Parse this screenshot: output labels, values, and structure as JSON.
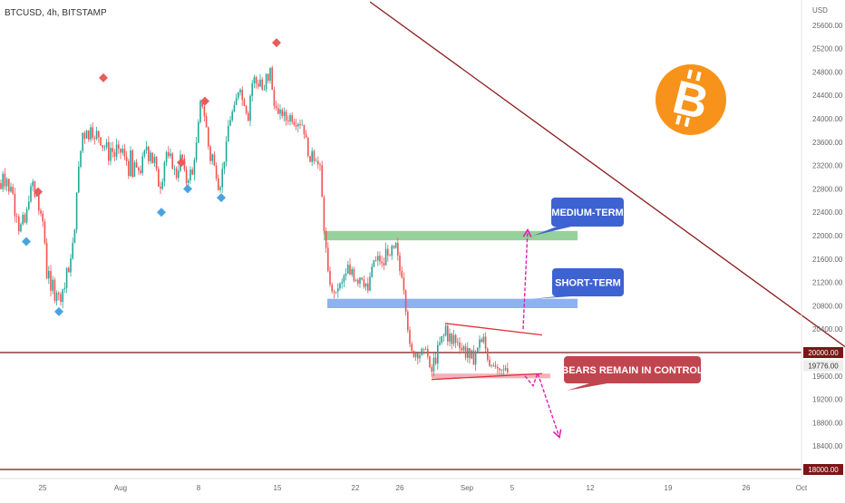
{
  "header": {
    "symbol": "BTCUSD, 4h, BITSTAMP"
  },
  "colors": {
    "up": "#26a69a",
    "down": "#ef5350",
    "level_line": "#7b1616",
    "trendline": "#8b1a1a",
    "medium_zone": "#84c98a",
    "short_zone": "#7aa3f0",
    "support_zone": "#f2a3ad",
    "callout_blue": "#3d62d1",
    "callout_red": "#c0454f",
    "arrow": "#e020b0",
    "triangle": "#e0303a",
    "diamond_red": "#e85c5c",
    "diamond_blue": "#4aa3df",
    "btc_orange": "#f7931a"
  },
  "chart_data": {
    "type": "candlestick",
    "yaxis_unit": "USD",
    "ylim": [
      17900,
      25900
    ],
    "y_ticks": [
      "25600.00",
      "25200.00",
      "24800.00",
      "24400.00",
      "24000.00",
      "23600.00",
      "23200.00",
      "22800.00",
      "22400.00",
      "22000.00",
      "21600.00",
      "21200.00",
      "20800.00",
      "20400.00",
      "19600.00",
      "19200.00",
      "18800.00",
      "18400.00"
    ],
    "x_ticks": [
      "25",
      "Aug",
      "8",
      "15",
      "22",
      "26",
      "Sep",
      "5",
      "12",
      "19",
      "26",
      "Oct"
    ],
    "price_labels": [
      {
        "text": "20000.00",
        "value": 20000,
        "style": "dark"
      },
      {
        "text": "19776.00",
        "value": 19776,
        "style": "light"
      },
      {
        "text": "18000.00",
        "value": 18000,
        "style": "dark"
      }
    ],
    "horizontal_levels": [
      20000,
      18000
    ],
    "zones": [
      {
        "name": "medium",
        "low": 21920,
        "high": 22080
      },
      {
        "name": "short",
        "low": 20760,
        "high": 20920
      },
      {
        "name": "support",
        "low": 19560,
        "high": 19640
      }
    ],
    "price_path": [
      [
        0,
        22900
      ],
      [
        2,
        22700
      ],
      [
        4,
        23350
      ],
      [
        6,
        22700
      ],
      [
        8,
        23050
      ],
      [
        10,
        22700
      ],
      [
        13,
        22950
      ],
      [
        16,
        22350
      ],
      [
        18,
        22550
      ],
      [
        20,
        21950
      ],
      [
        22,
        22350
      ],
      [
        24,
        22000
      ],
      [
        26,
        22500
      ],
      [
        28,
        22100
      ],
      [
        30,
        22500
      ],
      [
        34,
        22800
      ],
      [
        36,
        22950
      ],
      [
        38,
        22600
      ],
      [
        40,
        22850
      ],
      [
        42,
        22400
      ],
      [
        44,
        22500
      ],
      [
        46,
        22150
      ],
      [
        48,
        22300
      ],
      [
        50,
        21700
      ],
      [
        52,
        21200
      ],
      [
        54,
        21450
      ],
      [
        56,
        21000
      ],
      [
        58,
        21250
      ],
      [
        60,
        20900
      ],
      [
        62,
        21100
      ],
      [
        64,
        20950
      ],
      [
        66,
        21000
      ],
      [
        68,
        20850
      ],
      [
        70,
        21250
      ],
      [
        72,
        21050
      ],
      [
        74,
        21550
      ],
      [
        76,
        21300
      ],
      [
        78,
        21650
      ],
      [
        80,
        21850
      ],
      [
        82,
        21900
      ],
      [
        84,
        22700
      ],
      [
        86,
        23000
      ],
      [
        88,
        23350
      ],
      [
        90,
        23550
      ],
      [
        92,
        23900
      ],
      [
        94,
        23600
      ],
      [
        96,
        23900
      ],
      [
        98,
        23600
      ],
      [
        100,
        23900
      ],
      [
        102,
        23750
      ],
      [
        104,
        23600
      ],
      [
        106,
        23750
      ],
      [
        108,
        23800
      ],
      [
        110,
        23550
      ],
      [
        112,
        23650
      ],
      [
        114,
        23450
      ],
      [
        116,
        23550
      ],
      [
        118,
        23550
      ],
      [
        120,
        23300
      ],
      [
        122,
        23500
      ],
      [
        124,
        23450
      ],
      [
        126,
        23300
      ],
      [
        128,
        23600
      ],
      [
        130,
        23350
      ],
      [
        132,
        23550
      ],
      [
        134,
        23300
      ],
      [
        136,
        23600
      ],
      [
        138,
        23200
      ],
      [
        140,
        23300
      ],
      [
        142,
        23050
      ],
      [
        144,
        23400
      ],
      [
        146,
        22950
      ],
      [
        148,
        23300
      ],
      [
        150,
        23050
      ],
      [
        152,
        23250
      ],
      [
        154,
        22950
      ],
      [
        156,
        23250
      ],
      [
        158,
        23350
      ],
      [
        160,
        23450
      ],
      [
        162,
        23550
      ],
      [
        164,
        23300
      ],
      [
        166,
        23450
      ],
      [
        168,
        23250
      ],
      [
        170,
        23350
      ],
      [
        172,
        23200
      ],
      [
        174,
        22850
      ],
      [
        176,
        22900
      ],
      [
        178,
        22800
      ],
      [
        180,
        23100
      ],
      [
        182,
        23350
      ],
      [
        184,
        23450
      ],
      [
        186,
        23300
      ],
      [
        188,
        23350
      ],
      [
        190,
        23200
      ],
      [
        192,
        23150
      ],
      [
        194,
        23000
      ],
      [
        196,
        23050
      ],
      [
        198,
        23300
      ],
      [
        200,
        23400
      ],
      [
        202,
        23250
      ],
      [
        204,
        23000
      ],
      [
        206,
        22900
      ],
      [
        208,
        23000
      ],
      [
        210,
        23100
      ],
      [
        212,
        23000
      ],
      [
        214,
        23300
      ],
      [
        216,
        23500
      ],
      [
        218,
        23700
      ],
      [
        220,
        24200
      ],
      [
        222,
        24300
      ],
      [
        224,
        24200
      ],
      [
        226,
        24000
      ],
      [
        228,
        23800
      ],
      [
        230,
        23500
      ],
      [
        232,
        23300
      ],
      [
        234,
        23400
      ],
      [
        236,
        23200
      ],
      [
        238,
        23100
      ],
      [
        240,
        22900
      ],
      [
        242,
        22750
      ],
      [
        244,
        23000
      ],
      [
        246,
        23200
      ],
      [
        248,
        23350
      ],
      [
        250,
        23600
      ],
      [
        252,
        23900
      ],
      [
        254,
        24000
      ],
      [
        256,
        24100
      ],
      [
        258,
        24150
      ],
      [
        260,
        24300
      ],
      [
        262,
        24400
      ],
      [
        264,
        24600
      ],
      [
        266,
        24500
      ],
      [
        268,
        24200
      ],
      [
        270,
        24300
      ],
      [
        272,
        24100
      ],
      [
        274,
        24000
      ],
      [
        276,
        24400
      ],
      [
        278,
        24600
      ],
      [
        280,
        24700
      ],
      [
        282,
        24650
      ],
      [
        284,
        24500
      ],
      [
        286,
        24700
      ],
      [
        288,
        24650
      ],
      [
        290,
        24400
      ],
      [
        292,
        24500
      ],
      [
        294,
        24800
      ],
      [
        296,
        24600
      ],
      [
        298,
        24900
      ],
      [
        300,
        24500
      ],
      [
        302,
        24200
      ],
      [
        304,
        24300
      ],
      [
        306,
        24100
      ],
      [
        308,
        24000
      ],
      [
        310,
        24200
      ],
      [
        312,
        24000
      ],
      [
        314,
        24100
      ],
      [
        316,
        23950
      ],
      [
        318,
        24000
      ],
      [
        320,
        24050
      ],
      [
        322,
        24000
      ],
      [
        324,
        23950
      ],
      [
        326,
        23900
      ],
      [
        328,
        24000
      ],
      [
        330,
        23850
      ],
      [
        332,
        24000
      ],
      [
        334,
        23850
      ],
      [
        336,
        23750
      ],
      [
        338,
        23600
      ],
      [
        340,
        23400
      ],
      [
        342,
        23200
      ],
      [
        344,
        23500
      ],
      [
        346,
        23300
      ],
      [
        348,
        23400
      ],
      [
        350,
        23150
      ],
      [
        352,
        23300
      ],
      [
        354,
        23000
      ],
      [
        356,
        22400
      ],
      [
        358,
        22000
      ],
      [
        360,
        21700
      ],
      [
        362,
        21300
      ],
      [
        364,
        21200
      ],
      [
        366,
        21000
      ],
      [
        368,
        21100
      ],
      [
        370,
        20900
      ],
      [
        372,
        21200
      ],
      [
        374,
        21000
      ],
      [
        376,
        21300
      ],
      [
        378,
        21100
      ],
      [
        380,
        21400
      ],
      [
        382,
        21300
      ],
      [
        384,
        21500
      ],
      [
        386,
        21300
      ],
      [
        388,
        21450
      ],
      [
        390,
        21250
      ],
      [
        392,
        21350
      ],
      [
        394,
        21100
      ],
      [
        396,
        21400
      ],
      [
        398,
        21200
      ],
      [
        400,
        21350
      ],
      [
        402,
        21100
      ],
      [
        404,
        21200
      ],
      [
        406,
        21000
      ],
      [
        408,
        21300
      ],
      [
        410,
        21400
      ],
      [
        412,
        21600
      ],
      [
        414,
        21500
      ],
      [
        416,
        21700
      ],
      [
        418,
        21500
      ],
      [
        420,
        21650
      ],
      [
        422,
        21400
      ],
      [
        424,
        21550
      ],
      [
        426,
        21800
      ],
      [
        428,
        21700
      ],
      [
        430,
        21600
      ],
      [
        432,
        21800
      ],
      [
        434,
        21700
      ],
      [
        436,
        21900
      ],
      [
        438,
        21700
      ],
      [
        440,
        21500
      ],
      [
        442,
        21300
      ],
      [
        444,
        21350
      ],
      [
        446,
        21000
      ],
      [
        448,
        20700
      ],
      [
        450,
        20400
      ],
      [
        452,
        20100
      ],
      [
        454,
        20000
      ],
      [
        456,
        19950
      ],
      [
        458,
        20050
      ],
      [
        460,
        19900
      ],
      [
        462,
        20050
      ],
      [
        464,
        19900
      ],
      [
        466,
        20100
      ],
      [
        468,
        19950
      ],
      [
        470,
        20150
      ],
      [
        472,
        19900
      ],
      [
        474,
        19700
      ],
      [
        476,
        19650
      ],
      [
        478,
        19900
      ],
      [
        480,
        19800
      ],
      [
        482,
        20000
      ],
      [
        484,
        20200
      ],
      [
        486,
        20100
      ],
      [
        488,
        20350
      ],
      [
        490,
        20250
      ],
      [
        492,
        20500
      ],
      [
        494,
        20200
      ],
      [
        496,
        20300
      ],
      [
        498,
        20100
      ],
      [
        500,
        20350
      ],
      [
        502,
        20100
      ],
      [
        504,
        20300
      ],
      [
        506,
        20050
      ],
      [
        508,
        20200
      ],
      [
        510,
        19950
      ],
      [
        512,
        20150
      ],
      [
        514,
        19900
      ],
      [
        516,
        20100
      ],
      [
        518,
        19850
      ],
      [
        520,
        20000
      ],
      [
        522,
        19800
      ],
      [
        524,
        20050
      ],
      [
        526,
        19950
      ],
      [
        528,
        20200
      ],
      [
        530,
        20300
      ],
      [
        532,
        20100
      ],
      [
        534,
        20300
      ],
      [
        536,
        20000
      ],
      [
        538,
        19900
      ],
      [
        540,
        19800
      ],
      [
        542,
        19850
      ],
      [
        544,
        19700
      ],
      [
        546,
        19800
      ],
      [
        548,
        19650
      ],
      [
        550,
        19700
      ],
      [
        552,
        19600
      ],
      [
        554,
        19750
      ],
      [
        556,
        19650
      ],
      [
        558,
        19776
      ],
      [
        560,
        19700
      ]
    ],
    "peaks": [
      [
        42,
        22750,
        "red"
      ],
      [
        114,
        24700,
        "red"
      ],
      [
        200,
        23250,
        "red"
      ],
      [
        226,
        24300,
        "red"
      ],
      [
        305,
        25300,
        "red"
      ],
      [
        29,
        21900,
        "blue"
      ],
      [
        65,
        20700,
        "blue"
      ],
      [
        178,
        22400,
        "blue"
      ],
      [
        207,
        22800,
        "blue"
      ],
      [
        244,
        22650,
        "blue"
      ]
    ],
    "triangle_lines": [
      [
        [
          491,
          20500
        ],
        [
          598,
          20300
        ]
      ],
      [
        [
          476,
          19540
        ],
        [
          598,
          19640
        ]
      ]
    ],
    "trendline": [
      [
        408,
        26000
      ],
      [
        932,
        20100
      ]
    ],
    "scenario_arrows": [
      [
        [
          577,
          20400
        ],
        [
          582,
          22100
        ]
      ],
      [
        [
          579,
          19600
        ],
        [
          588,
          19430
        ],
        [
          593,
          19650
        ],
        [
          617,
          18550
        ]
      ]
    ],
    "callouts": [
      {
        "text": "MEDIUM-TERM",
        "color": "blue"
      },
      {
        "text": "SHORT-TERM",
        "color": "blue"
      },
      {
        "text": "BEARS REMAIN IN CONTROL",
        "color": "red"
      }
    ]
  }
}
